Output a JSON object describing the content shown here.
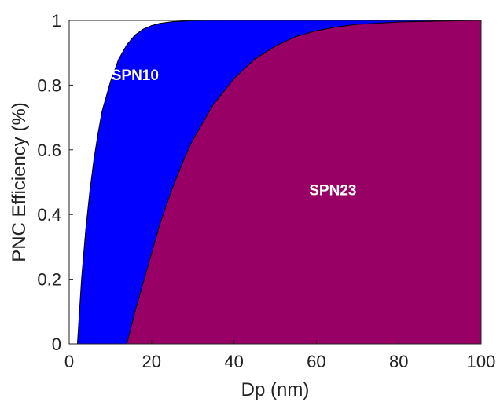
{
  "chart_data": {
    "type": "area",
    "xlabel": "Dp (nm)",
    "ylabel": "PNC Efficiency (%)",
    "xlim": [
      0,
      100
    ],
    "ylim": [
      0,
      1
    ],
    "xticks": [
      0,
      20,
      40,
      60,
      80,
      100
    ],
    "yticks": [
      0,
      0.2,
      0.4,
      0.6,
      0.8,
      1
    ],
    "xtick_labels": [
      "0",
      "20",
      "40",
      "60",
      "80",
      "100"
    ],
    "ytick_labels": [
      "0",
      "0.2",
      "0.4",
      "0.6",
      "0.8",
      "1"
    ],
    "grid": false,
    "x": [
      0,
      2,
      2.5,
      3,
      4,
      5,
      6,
      7,
      8,
      10,
      12,
      14,
      15,
      16,
      18,
      20,
      22,
      25,
      28,
      30,
      35,
      40,
      45,
      50,
      55,
      60,
      65,
      70,
      80,
      90,
      100
    ],
    "series": [
      {
        "name": "SPN10",
        "color": "#0000ff",
        "values": [
          0,
          0,
          0.1,
          0.2,
          0.35,
          0.47,
          0.57,
          0.65,
          0.72,
          0.81,
          0.88,
          0.925,
          0.94,
          0.955,
          0.973,
          0.984,
          0.991,
          0.996,
          0.998,
          0.999,
          1,
          1,
          1,
          1,
          1,
          1,
          1,
          1,
          1,
          1,
          1
        ]
      },
      {
        "name": "SPN23",
        "color": "#990066",
        "values": [
          0,
          0,
          0,
          0,
          0,
          0,
          0,
          0,
          0,
          0,
          0,
          0,
          0.05,
          0.1,
          0.19,
          0.28,
          0.37,
          0.48,
          0.575,
          0.63,
          0.74,
          0.82,
          0.88,
          0.92,
          0.95,
          0.968,
          0.98,
          0.988,
          0.995,
          0.998,
          1
        ]
      }
    ],
    "annotations": [
      {
        "text": "SPN10",
        "x": 16,
        "y": 0.815
      },
      {
        "text": "SPN23",
        "x": 64,
        "y": 0.46
      }
    ]
  }
}
